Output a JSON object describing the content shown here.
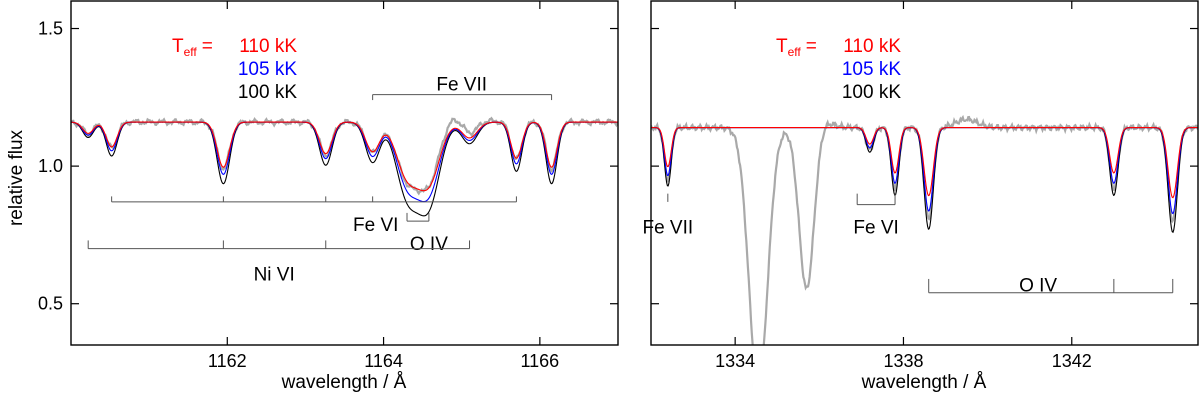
{
  "figure": {
    "ylabel": "relative flux",
    "legend": {
      "teff_symbol": "T",
      "teff_subscript": "eff",
      "equals": "=",
      "entries": [
        {
          "label": "110 kK",
          "color": "#ff0000"
        },
        {
          "label": "105 kK",
          "color": "#0000ff"
        },
        {
          "label": "100 kK",
          "color": "#000000"
        }
      ],
      "observation_color": "#a9a9a9"
    }
  },
  "chart_data": [
    {
      "type": "line",
      "title": "",
      "xlabel": "wavelength / Å",
      "ylabel": "relative flux",
      "xlim": [
        1160.0,
        1167.0
      ],
      "ylim": [
        0.35,
        1.6
      ],
      "xticks": [
        1162,
        1164,
        1166
      ],
      "xtick_labels": [
        "1162",
        "1164",
        "1166"
      ],
      "yticks": [
        0.5,
        1.0,
        1.5
      ],
      "ytick_labels": [
        "0.5",
        "1.0",
        "1.5"
      ],
      "continuum": 1.16,
      "lines": [
        {
          "x": 1160.22,
          "depth": 0.05,
          "width": 0.07
        },
        {
          "x": 1160.52,
          "depth": 0.11,
          "width": 0.07
        },
        {
          "x": 1161.95,
          "depth": 0.2,
          "width": 0.08
        },
        {
          "x": 1163.26,
          "depth": 0.14,
          "width": 0.08
        },
        {
          "x": 1163.86,
          "depth": 0.13,
          "width": 0.09
        },
        {
          "x": 1164.3,
          "depth": 0.23,
          "width": 0.14
        },
        {
          "x": 1164.58,
          "depth": 0.26,
          "width": 0.14
        },
        {
          "x": 1165.1,
          "depth": 0.07,
          "width": 0.1
        },
        {
          "x": 1165.7,
          "depth": 0.16,
          "width": 0.07
        },
        {
          "x": 1166.15,
          "depth": 0.2,
          "width": 0.07
        }
      ],
      "series": [
        {
          "name": "110 kK",
          "color": "#ff0000",
          "scale": 0.82
        },
        {
          "name": "105 kK",
          "color": "#0000ff",
          "scale": 0.95
        },
        {
          "name": "100 kK",
          "color": "#000000",
          "scale": 1.12
        }
      ],
      "observation": {
        "name": "observed",
        "color": "#a9a9a9",
        "scale": 0.85,
        "extra_lines": [
          {
            "x": 1164.9,
            "depth": -0.03,
            "width": 0.25
          }
        ],
        "noise_amp": 0.012
      },
      "ion_markers": [
        {
          "label": "Fe VII",
          "direction": "down",
          "y": 1.26,
          "tick_to": 1.24,
          "xs": [
            1163.86,
            1166.15
          ],
          "label_x": 1165.0,
          "label_y": 1.3
        },
        {
          "label": "Fe VI",
          "direction": "up",
          "y": 0.87,
          "tick_to": 0.89,
          "xs": [
            1160.52,
            1161.95,
            1163.26,
            1163.86,
            1165.7
          ],
          "label_x": 1163.9,
          "label_y": 0.79
        },
        {
          "label": "O IV",
          "direction": "up",
          "y": 0.8,
          "tick_to": 0.83,
          "xs": [
            1164.3,
            1164.58
          ],
          "label_x": 1164.58,
          "label_y": 0.72
        },
        {
          "label": "Ni VI",
          "direction": "up",
          "y": 0.7,
          "tick_to": 0.73,
          "xs": [
            1160.22,
            1161.95,
            1163.26,
            1165.1
          ],
          "label_x": 1162.6,
          "label_y": 0.61
        }
      ]
    },
    {
      "type": "line",
      "title": "",
      "xlabel": "wavelength / Å",
      "ylabel": "",
      "xlim": [
        1332.0,
        1345.0
      ],
      "ylim": [
        0.35,
        1.6
      ],
      "xticks": [
        1334,
        1338,
        1342
      ],
      "xtick_labels": [
        "1334",
        "1338",
        "1342"
      ],
      "yticks": [
        0.5,
        1.0,
        1.5
      ],
      "ytick_labels": [
        "",
        "",
        ""
      ],
      "continuum": 1.14,
      "lines": [
        {
          "x": 1332.4,
          "depth": 0.19,
          "width": 0.08
        },
        {
          "x": 1337.2,
          "depth": 0.08,
          "width": 0.09
        },
        {
          "x": 1337.8,
          "depth": 0.22,
          "width": 0.09
        },
        {
          "x": 1338.6,
          "depth": 0.33,
          "width": 0.11
        },
        {
          "x": 1343.0,
          "depth": 0.22,
          "width": 0.1
        },
        {
          "x": 1344.4,
          "depth": 0.34,
          "width": 0.11
        }
      ],
      "series": [
        {
          "name": "110 kK",
          "color": "#ff0000",
          "scale": 0.75
        },
        {
          "name": "105 kK",
          "color": "#0000ff",
          "scale": 0.92
        },
        {
          "name": "100 kK",
          "color": "#000000",
          "scale": 1.12
        }
      ],
      "observation": {
        "name": "observed",
        "color": "#a9a9a9",
        "scale": 1.0,
        "extra_lines": [
          {
            "x": 1334.55,
            "depth": 0.95,
            "width": 0.22
          },
          {
            "x": 1335.7,
            "depth": 0.6,
            "width": 0.18
          },
          {
            "x": 1336.0,
            "depth": -0.03,
            "width": 0.25
          },
          {
            "x": 1339.5,
            "depth": -0.03,
            "width": 0.25
          }
        ],
        "noise_amp": 0.012
      },
      "ion_markers": [
        {
          "label": "Fe VII",
          "direction": "up",
          "y": 0.87,
          "tick_to": 0.9,
          "xs": [
            1332.4
          ],
          "label_x": 1332.4,
          "label_y": 0.78
        },
        {
          "label": "Fe VI",
          "direction": "up",
          "y": 0.86,
          "tick_to": 0.9,
          "xs": [
            1336.9,
            1337.8
          ],
          "label_x": 1337.35,
          "label_y": 0.78
        },
        {
          "label": "O IV",
          "direction": "up",
          "y": 0.54,
          "tick_to": 0.59,
          "xs": [
            1338.6,
            1343.0,
            1344.4
          ],
          "label_x": 1341.2,
          "label_y": 0.57
        }
      ]
    }
  ]
}
